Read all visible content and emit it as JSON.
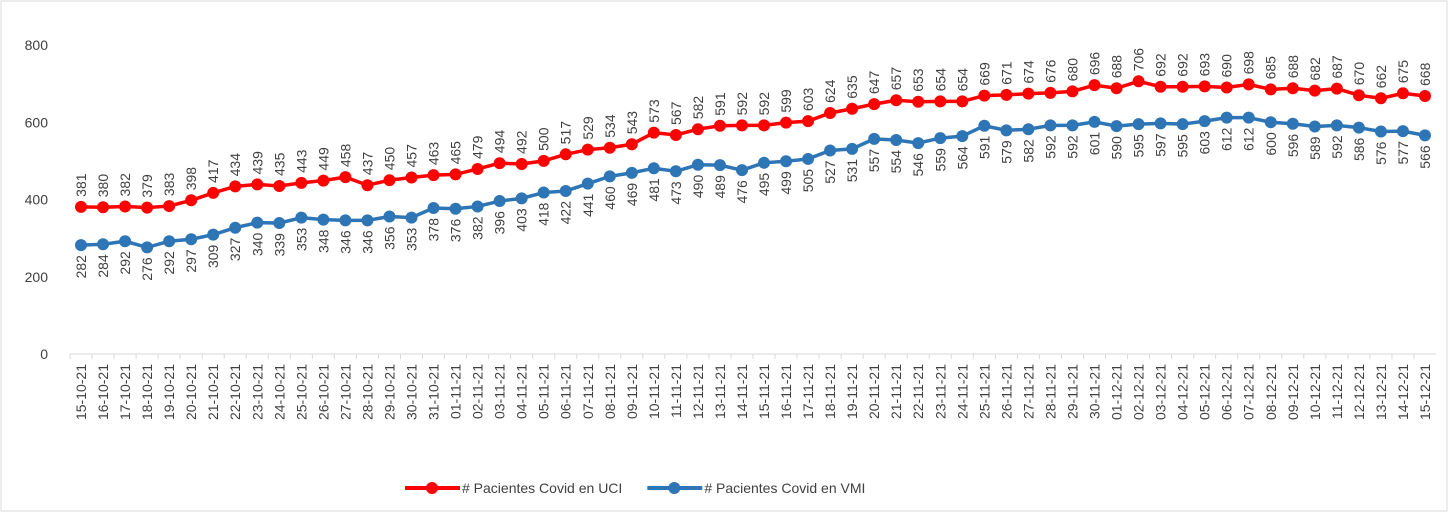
{
  "chart_data": {
    "type": "line",
    "categories": [
      "15-10-21",
      "16-10-21",
      "17-10-21",
      "18-10-21",
      "19-10-21",
      "20-10-21",
      "21-10-21",
      "22-10-21",
      "23-10-21",
      "24-10-21",
      "25-10-21",
      "26-10-21",
      "27-10-21",
      "28-10-21",
      "29-10-21",
      "30-10-21",
      "31-10-21",
      "01-11-21",
      "02-11-21",
      "03-11-21",
      "04-11-21",
      "05-11-21",
      "06-11-21",
      "07-11-21",
      "08-11-21",
      "09-11-21",
      "10-11-21",
      "11-11-21",
      "12-11-21",
      "13-11-21",
      "14-11-21",
      "15-11-21",
      "16-11-21",
      "17-11-21",
      "18-11-21",
      "19-11-21",
      "20-11-21",
      "21-11-21",
      "22-11-21",
      "23-11-21",
      "24-11-21",
      "25-11-21",
      "26-11-21",
      "27-11-21",
      "28-11-21",
      "29-11-21",
      "30-11-21",
      "01-12-21",
      "02-12-21",
      "03-12-21",
      "04-12-21",
      "05-12-21",
      "06-12-21",
      "07-12-21",
      "08-12-21",
      "09-12-21",
      "10-12-21",
      "11-12-21",
      "12-12-21",
      "13-12-21",
      "14-12-21",
      "15-12-21"
    ],
    "series": [
      {
        "name": "# Pacientes Covid en UCI",
        "color": "#ff0000",
        "label_side": "above",
        "values": [
          381,
          380,
          382,
          379,
          383,
          398,
          417,
          434,
          439,
          435,
          443,
          449,
          458,
          437,
          450,
          457,
          463,
          465,
          479,
          494,
          492,
          500,
          517,
          529,
          534,
          543,
          573,
          567,
          582,
          591,
          592,
          592,
          599,
          603,
          624,
          635,
          647,
          657,
          653,
          654,
          654,
          669,
          671,
          674,
          676,
          680,
          696,
          688,
          706,
          692,
          692,
          693,
          690,
          698,
          685,
          688,
          682,
          687,
          670,
          662,
          675,
          668
        ]
      },
      {
        "name": "# Pacientes Covid en VMI",
        "color": "#2e75b6",
        "label_side": "below",
        "values": [
          282,
          284,
          292,
          276,
          292,
          297,
          309,
          327,
          340,
          339,
          353,
          348,
          346,
          346,
          356,
          353,
          378,
          376,
          382,
          396,
          403,
          418,
          422,
          441,
          460,
          469,
          481,
          473,
          490,
          489,
          476,
          495,
          499,
          505,
          527,
          531,
          557,
          554,
          546,
          559,
          564,
          591,
          579,
          582,
          592,
          592,
          601,
          590,
          595,
          597,
          595,
          603,
          612,
          612,
          600,
          596,
          589,
          592,
          586,
          576,
          577,
          566
        ]
      }
    ],
    "ylim": [
      0,
      800
    ],
    "yticks": [
      0,
      200,
      400,
      600,
      800
    ],
    "grid": false,
    "legend": "bottom"
  }
}
